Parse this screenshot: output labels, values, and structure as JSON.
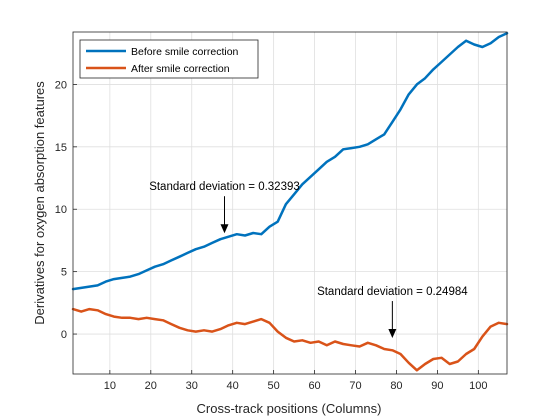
{
  "chart_data": {
    "type": "line",
    "xlabel": "Cross-track positions (Columns)",
    "ylabel": "Derivatives for oxygen absorption features",
    "xlim": [
      1,
      107
    ],
    "ylim": [
      -3.2,
      24.2
    ],
    "x_ticks": [
      10,
      20,
      30,
      40,
      50,
      60,
      70,
      80,
      90,
      100
    ],
    "y_ticks": [
      0,
      5,
      10,
      15,
      20
    ],
    "grid": true,
    "legend_position": "top-left",
    "series": [
      {
        "name": "Before smile correction",
        "color": "#0072BD",
        "points": [
          [
            1,
            3.6
          ],
          [
            3,
            3.7
          ],
          [
            5,
            3.8
          ],
          [
            7,
            3.9
          ],
          [
            9,
            4.2
          ],
          [
            11,
            4.4
          ],
          [
            13,
            4.5
          ],
          [
            15,
            4.6
          ],
          [
            17,
            4.8
          ],
          [
            19,
            5.1
          ],
          [
            21,
            5.4
          ],
          [
            23,
            5.6
          ],
          [
            25,
            5.9
          ],
          [
            27,
            6.2
          ],
          [
            29,
            6.5
          ],
          [
            31,
            6.8
          ],
          [
            33,
            7.0
          ],
          [
            35,
            7.3
          ],
          [
            37,
            7.6
          ],
          [
            39,
            7.8
          ],
          [
            41,
            8.0
          ],
          [
            43,
            7.9
          ],
          [
            45,
            8.1
          ],
          [
            47,
            8.0
          ],
          [
            49,
            8.6
          ],
          [
            51,
            9.0
          ],
          [
            53,
            10.4
          ],
          [
            55,
            11.2
          ],
          [
            57,
            12.0
          ],
          [
            59,
            12.6
          ],
          [
            61,
            13.2
          ],
          [
            63,
            13.8
          ],
          [
            65,
            14.2
          ],
          [
            67,
            14.8
          ],
          [
            69,
            14.9
          ],
          [
            71,
            15.0
          ],
          [
            73,
            15.2
          ],
          [
            75,
            15.6
          ],
          [
            77,
            16.0
          ],
          [
            79,
            17.0
          ],
          [
            81,
            18.0
          ],
          [
            83,
            19.2
          ],
          [
            85,
            20.0
          ],
          [
            87,
            20.5
          ],
          [
            89,
            21.2
          ],
          [
            91,
            21.8
          ],
          [
            93,
            22.4
          ],
          [
            95,
            23.0
          ],
          [
            97,
            23.5
          ],
          [
            99,
            23.2
          ],
          [
            101,
            23.0
          ],
          [
            103,
            23.3
          ],
          [
            105,
            23.8
          ],
          [
            107,
            24.1
          ]
        ]
      },
      {
        "name": "After smile correction",
        "color": "#D95319",
        "points": [
          [
            1,
            2.0
          ],
          [
            3,
            1.8
          ],
          [
            5,
            2.0
          ],
          [
            7,
            1.9
          ],
          [
            9,
            1.6
          ],
          [
            11,
            1.4
          ],
          [
            13,
            1.3
          ],
          [
            15,
            1.3
          ],
          [
            17,
            1.2
          ],
          [
            19,
            1.3
          ],
          [
            21,
            1.2
          ],
          [
            23,
            1.1
          ],
          [
            25,
            0.8
          ],
          [
            27,
            0.5
          ],
          [
            29,
            0.3
          ],
          [
            31,
            0.2
          ],
          [
            33,
            0.3
          ],
          [
            35,
            0.2
          ],
          [
            37,
            0.4
          ],
          [
            39,
            0.7
          ],
          [
            41,
            0.9
          ],
          [
            43,
            0.8
          ],
          [
            45,
            1.0
          ],
          [
            47,
            1.2
          ],
          [
            49,
            0.9
          ],
          [
            51,
            0.2
          ],
          [
            53,
            -0.3
          ],
          [
            55,
            -0.6
          ],
          [
            57,
            -0.5
          ],
          [
            59,
            -0.7
          ],
          [
            61,
            -0.6
          ],
          [
            63,
            -0.9
          ],
          [
            65,
            -0.6
          ],
          [
            67,
            -0.8
          ],
          [
            69,
            -0.9
          ],
          [
            71,
            -1.0
          ],
          [
            73,
            -0.7
          ],
          [
            75,
            -0.9
          ],
          [
            77,
            -1.2
          ],
          [
            79,
            -1.3
          ],
          [
            81,
            -1.6
          ],
          [
            83,
            -2.3
          ],
          [
            85,
            -2.9
          ],
          [
            87,
            -2.4
          ],
          [
            89,
            -2.0
          ],
          [
            91,
            -1.9
          ],
          [
            93,
            -2.4
          ],
          [
            95,
            -2.2
          ],
          [
            97,
            -1.6
          ],
          [
            99,
            -1.2
          ],
          [
            101,
            -0.2
          ],
          [
            103,
            0.6
          ],
          [
            105,
            0.9
          ],
          [
            107,
            0.8
          ]
        ]
      }
    ],
    "annotations": [
      {
        "text": "Standard deviation = 0.32393",
        "x": 38,
        "y": 8.0
      },
      {
        "text": "Standard deviation = 0.24984",
        "x": 79,
        "y": -0.4
      }
    ]
  }
}
